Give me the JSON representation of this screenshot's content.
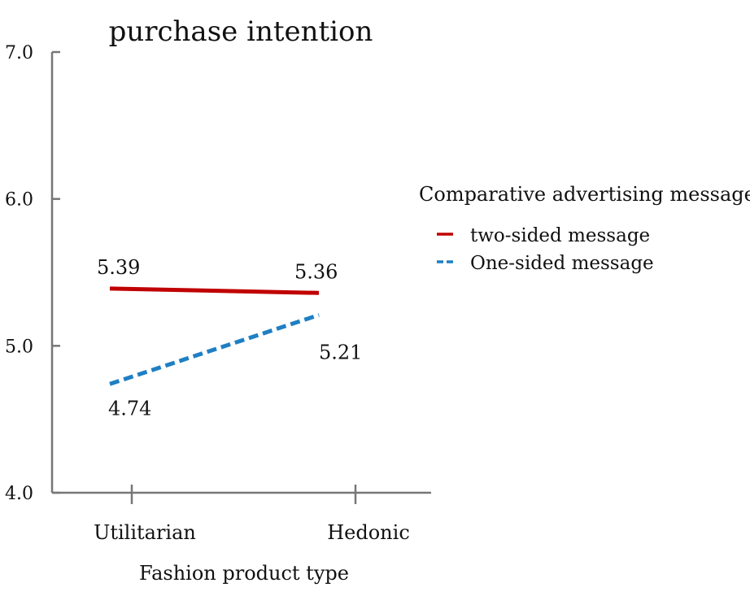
{
  "chart_data": {
    "type": "line",
    "title": "purchase intention",
    "xlabel": "Fashion product type",
    "ylabel": "",
    "categories": [
      "Utilitarian",
      "Hedonic"
    ],
    "ylim": [
      4.0,
      7.0
    ],
    "yticks": [
      "4.0",
      "5.0",
      "6.0",
      "7.0"
    ],
    "grid": false,
    "legend": {
      "title": "Comparative advertising message",
      "position": "right"
    },
    "series": [
      {
        "name": "two-sided message",
        "values": [
          5.39,
          5.36
        ],
        "labels": [
          "5.39",
          "5.36"
        ],
        "color": "#c00000",
        "style": "solid"
      },
      {
        "name": "One-sided message",
        "values": [
          4.74,
          5.21
        ],
        "labels": [
          "4.74",
          "5.21"
        ],
        "color": "#1f7fc4",
        "style": "dashed"
      }
    ]
  }
}
